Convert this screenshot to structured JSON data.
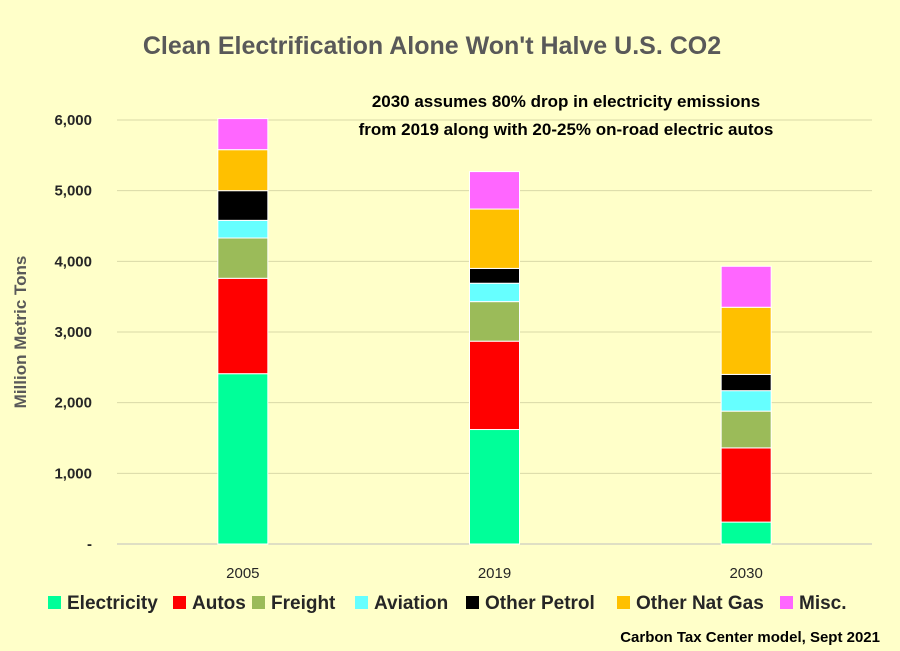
{
  "chart_data": {
    "type": "bar",
    "stacked": true,
    "title": "Clean Electrification Alone Won't Halve U.S. CO2",
    "annotation_lines": [
      "2030 assumes 80% drop in electricity emissions",
      "from 2019 along with 20-25% on-road electric autos"
    ],
    "ylabel": "Million Metric Tons",
    "xlabel": "",
    "ylim": [
      0,
      6000
    ],
    "yticks": [
      0,
      1000,
      2000,
      3000,
      4000,
      5000,
      6000
    ],
    "ytick_labels": [
      "-",
      "1,000",
      "2,000",
      "3,000",
      "4,000",
      "5,000",
      "6,000"
    ],
    "categories": [
      "2005",
      "2019",
      "2030"
    ],
    "grid": true,
    "legend_position": "bottom",
    "series": [
      {
        "name": "Electricity",
        "color": "#00ff99",
        "values": [
          2410,
          1620,
          310
        ]
      },
      {
        "name": "Autos",
        "color": "#ff0000",
        "values": [
          1350,
          1250,
          1050
        ]
      },
      {
        "name": "Freight",
        "color": "#9bbb59",
        "values": [
          570,
          560,
          520
        ]
      },
      {
        "name": "Aviation",
        "color": "#66ffff",
        "values": [
          250,
          260,
          290
        ]
      },
      {
        "name": "Other Petrol",
        "color": "#000000",
        "values": [
          420,
          210,
          230
        ]
      },
      {
        "name": "Other Nat Gas",
        "color": "#ffc000",
        "values": [
          580,
          840,
          950
        ]
      },
      {
        "name": "Misc.",
        "color": "#ff66ff",
        "values": [
          440,
          530,
          580
        ]
      }
    ],
    "source_note": "Carbon Tax Center model, Sept 2021"
  }
}
